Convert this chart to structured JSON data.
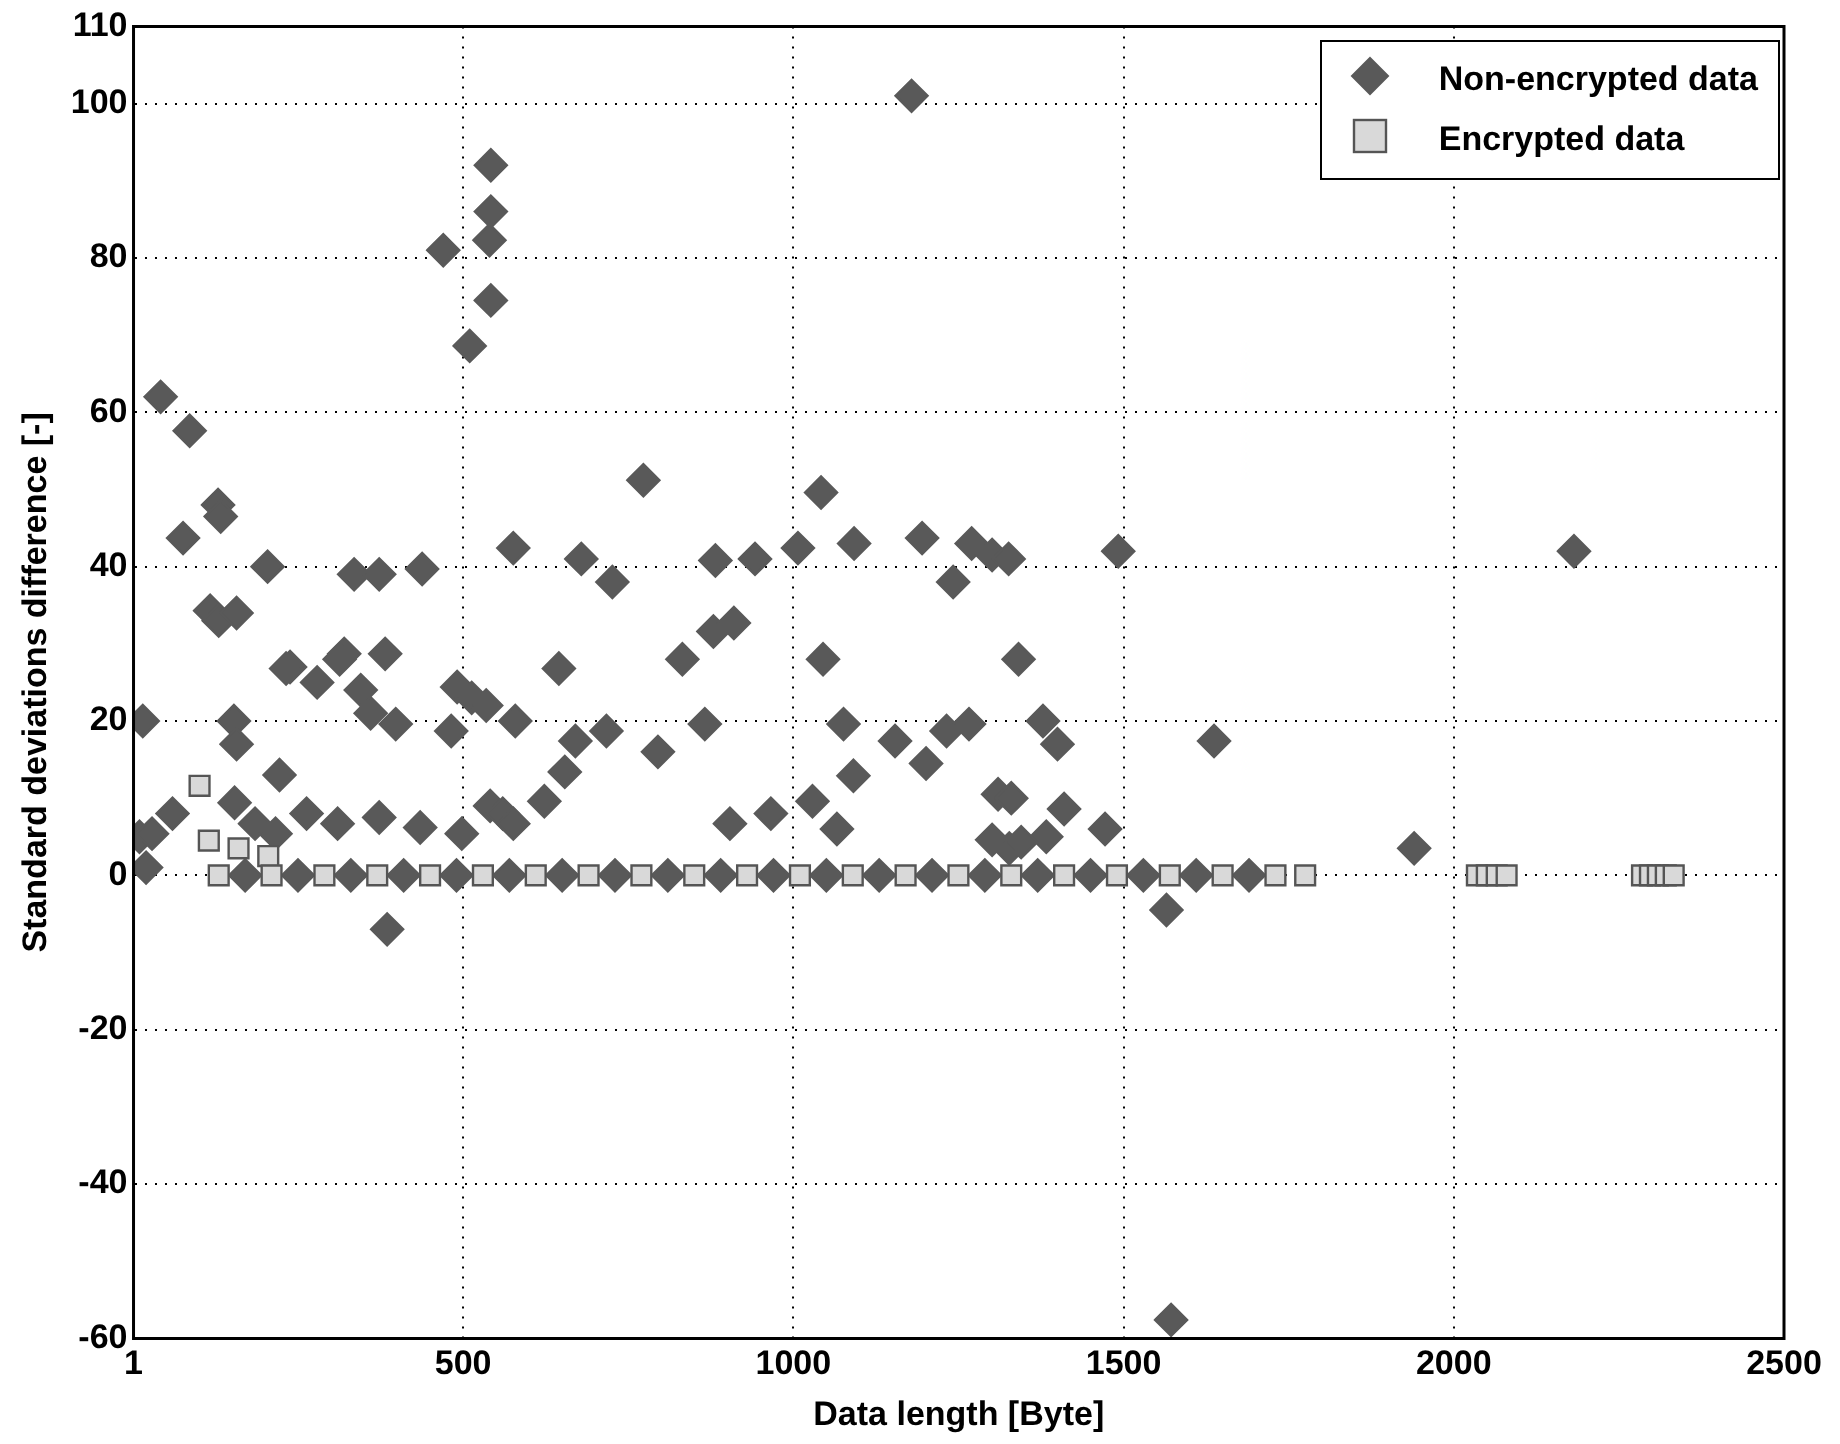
{
  "chart_data": {
    "type": "scatter",
    "xlabel": "Data length [Byte]",
    "ylabel": "Standard deviations difference [-]",
    "xlim": [
      1,
      2500
    ],
    "xticks": [
      1,
      500,
      1000,
      1500,
      2000,
      2500
    ],
    "ylim": [
      -60,
      110
    ],
    "yticks": [
      -60,
      -40,
      -20,
      0,
      20,
      40,
      60,
      80,
      100,
      110
    ],
    "grid": true,
    "legend": "top right",
    "series": [
      {
        "name": "Non-encrypted data",
        "color": "#595959",
        "marker": "diamond",
        "x": [
          10,
          15,
          42,
          86,
          76,
          129,
          133,
          117,
          130,
          157,
          204,
          335,
          373,
          438,
          470,
          542,
          542,
          540,
          542,
          510,
          576,
          679,
          726,
          773,
          832,
          882,
          942,
          879,
          910,
          1007,
          1042,
          1092,
          1045,
          1179,
          1195,
          1270,
          1242,
          645,
          238,
          320,
          382,
          2182,
          1492,
          1301,
          1326,
          1341,
          153,
          157,
          222,
          232,
          279,
          313,
          345,
          360,
          398,
          491,
          513,
          535,
          579,
          541,
          482,
          560,
          623,
          654,
          670,
          717,
          795,
          866,
          904,
          966,
          1029,
          1066,
          1076,
          1091,
          1154,
          1201,
          1232,
          1266,
          1378,
          1400,
          1310,
          1330,
          1327,
          1383,
          1472,
          1565,
          1572,
          385,
          1637,
          1940,
          1301,
          1345,
          1410,
          154,
          185,
          216,
          263,
          310,
          373,
          435,
          498,
          576,
          29,
          60,
          20,
          170,
          250,
          330,
          410,
          490,
          570,
          650,
          730,
          810,
          890,
          970,
          1050,
          1130,
          1210,
          1290,
          1370,
          1450,
          1530,
          1610,
          1690
        ],
        "values": [
          5,
          20,
          62,
          57.6,
          43.7,
          48,
          46.5,
          34.3,
          33,
          34,
          40,
          39,
          39,
          39.7,
          81,
          92,
          86,
          82.3,
          74.5,
          68.6,
          42.4,
          41,
          38,
          51.2,
          28,
          40.8,
          41,
          31.6,
          32.7,
          42.4,
          49.6,
          43,
          28,
          101,
          43.7,
          43,
          38,
          26.8,
          27,
          28.7,
          28.7,
          42,
          42,
          41.5,
          41,
          28,
          20,
          17,
          13,
          26.8,
          25,
          28,
          24,
          21,
          19.6,
          24.4,
          23,
          22,
          20,
          9,
          18.7,
          8,
          9.6,
          13.4,
          17.4,
          18.7,
          16,
          19.6,
          6.7,
          8,
          9.6,
          6,
          19.6,
          12.9,
          17.4,
          14.5,
          18.7,
          19.6,
          20,
          17,
          10.5,
          10,
          3.5,
          5,
          6,
          -4.5,
          -57.6,
          -7,
          17.4,
          3.5,
          4.6,
          4.3,
          8.6,
          9.4,
          6.7,
          5.4,
          8,
          6.7,
          7.5,
          6.2,
          5.4,
          6.7,
          5.4,
          8,
          1,
          0,
          0,
          0,
          0,
          0,
          0,
          0,
          0,
          0,
          0,
          0,
          0,
          0,
          0,
          0,
          0,
          0,
          0,
          0,
          0
        ]
      },
      {
        "name": "Encrypted data",
        "color": "#d9d9d9",
        "marker": "square",
        "x": [
          101,
          115,
          160,
          205,
          130,
          210,
          290,
          370,
          450,
          530,
          610,
          690,
          770,
          850,
          930,
          1010,
          1090,
          1170,
          1250,
          1330,
          1410,
          1490,
          1570,
          1650,
          1730,
          1775,
          2035,
          2050,
          2065,
          2080,
          2285,
          2297,
          2309,
          2321,
          2333
        ],
        "values": [
          11.6,
          4.5,
          3.5,
          2.5,
          0,
          0,
          0,
          0,
          0,
          0,
          0,
          0,
          0,
          0,
          0,
          0,
          0,
          0,
          0,
          0,
          0,
          0,
          0,
          0,
          0,
          0,
          0,
          0,
          0,
          0,
          0,
          0,
          0,
          0,
          0
        ]
      }
    ]
  }
}
